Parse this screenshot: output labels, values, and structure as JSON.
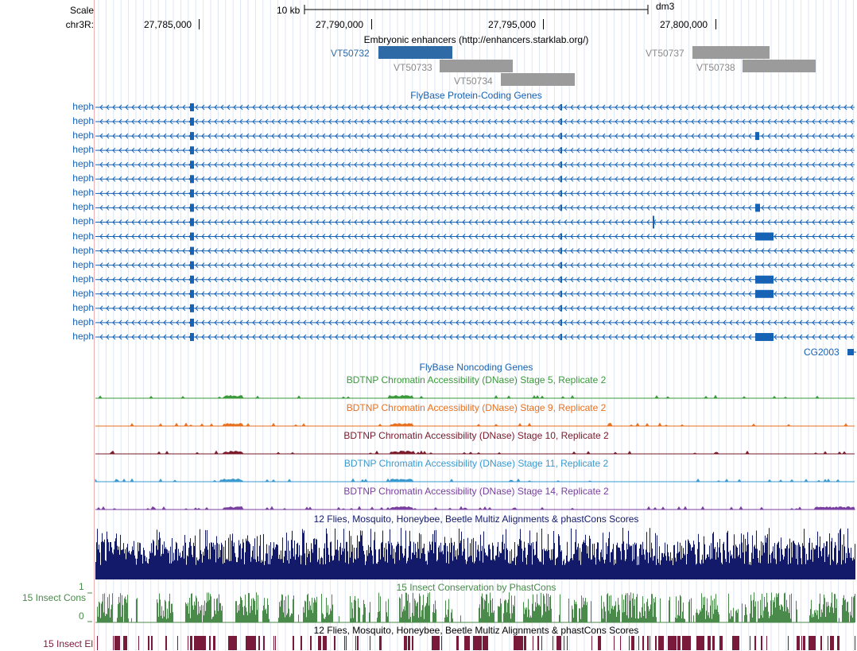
{
  "ruler": {
    "scale_label": "Scale",
    "chrom_label": "chr3R:",
    "scale_bar_text": "10 kb",
    "assembly": "dm3",
    "positions": [
      "27,785,000",
      "27,790,000",
      "27,795,000",
      "27,800,000"
    ]
  },
  "tracks": {
    "enhancers": {
      "title": "Embryonic enhancers (http://enhancers.starklab.org/)",
      "items": [
        {
          "name": "VT50732",
          "color": "#2e6aa6",
          "selected": true
        },
        {
          "name": "VT50733",
          "color": "#9b9b9b"
        },
        {
          "name": "VT50734",
          "color": "#9b9b9b"
        },
        {
          "name": "VT50737",
          "color": "#9b9b9b"
        },
        {
          "name": "VT50738",
          "color": "#9b9b9b"
        }
      ]
    },
    "genes": {
      "title": "FlyBase Protein-Coding Genes",
      "color": "#1662b4",
      "transcripts": [
        "heph",
        "heph",
        "heph",
        "heph",
        "heph",
        "heph",
        "heph",
        "heph",
        "heph",
        "heph",
        "heph",
        "heph",
        "heph",
        "heph",
        "heph",
        "heph",
        "heph"
      ],
      "extra_gene": "CG2003"
    },
    "noncoding": {
      "title": "FlyBase Noncoding Genes",
      "color": "#1662b4"
    },
    "dnase": [
      {
        "title": "BDTNP Chromatin Accessibility (DNase) Stage 5, Replicate 2",
        "color": "#3a9a3a"
      },
      {
        "title": "BDTNP Chromatin Accessibility (DNase) Stage 9, Replicate 2",
        "color": "#e8701e"
      },
      {
        "title": "BDTNP Chromatin Accessibility (DNase) Stage 10, Replicate 2",
        "color": "#7a1a2a"
      },
      {
        "title": "BDTNP Chromatin Accessibility (DNase) Stage 11, Replicate 2",
        "color": "#3a9ad0"
      },
      {
        "title": "BDTNP Chromatin Accessibility (DNase) Stage 14, Replicate 2",
        "color": "#7a3fa0"
      }
    ],
    "multiz": {
      "title": "12 Flies, Mosquito, Honeybee, Beetle Multiz Alignments & phastCons Scores",
      "color": "#141a6a"
    },
    "cons": {
      "title": "15 Insect Conservation by PhastCons",
      "side_label": "15 Insect Cons",
      "max_label": "1",
      "min_label": "0",
      "color": "#4a8a4a"
    },
    "elements": {
      "title": "12 Flies, Mosquito, Honeybee, Beetle Multiz Alignments & phastCons Scores",
      "side_label": "15 Insect El",
      "color": "#7a1a3a"
    }
  }
}
